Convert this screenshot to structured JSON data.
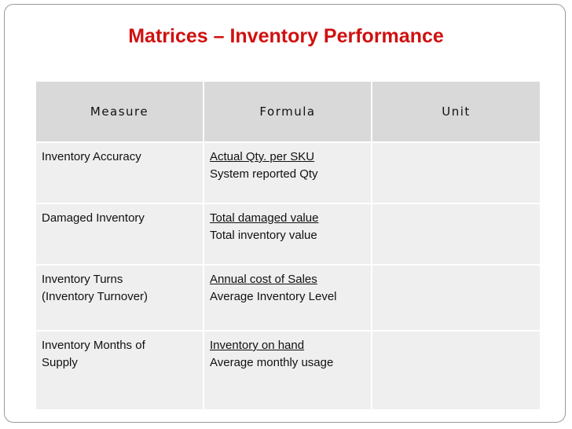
{
  "title": "Matrices – Inventory Performance",
  "table": {
    "header": [
      "Measure",
      "Formula",
      "Unit"
    ],
    "rows": [
      {
        "measure": [
          "Inventory Accuracy"
        ],
        "numerator": "Actual Qty. per SKU",
        "denominator": "System reported Qty"
      },
      {
        "measure": [
          "Damaged Inventory"
        ],
        "numerator": "Total damaged value",
        "denominator": "Total inventory value"
      },
      {
        "measure": [
          "Inventory Turns",
          "(Inventory Turnover)"
        ],
        "numerator": "Annual cost of Sales",
        "denominator": "Average Inventory Level"
      },
      {
        "measure": [
          "Inventory Months of",
          "Supply"
        ],
        "numerator": "Inventory on hand",
        "denominator": "Average monthly usage"
      }
    ]
  }
}
